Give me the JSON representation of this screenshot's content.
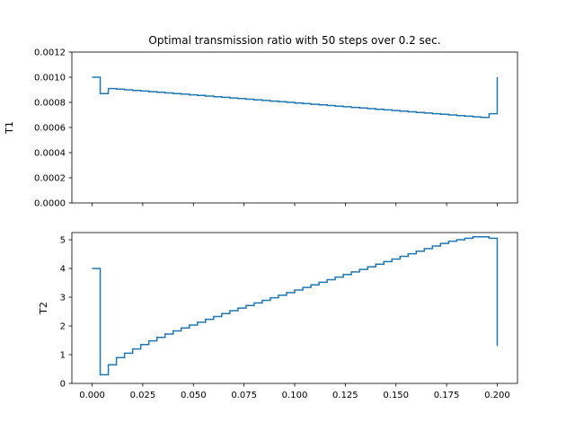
{
  "chart_data": [
    {
      "type": "line",
      "drawstyle": "steps-post",
      "title": "Optimal transmission ratio with 50 steps over 0.2 sec.",
      "xlabel": "",
      "ylabel": "T1",
      "xlim": [
        -0.01,
        0.21
      ],
      "ylim": [
        0,
        0.0012
      ],
      "yticks": [
        0,
        0.0002,
        0.0004,
        0.0006,
        0.0008,
        0.001,
        0.0012
      ],
      "ytick_labels": [
        "0.0000",
        "0.0002",
        "0.0004",
        "0.0006",
        "0.0008",
        "0.0010",
        "0.0012"
      ],
      "xticks": [
        0,
        0.025,
        0.05,
        0.075,
        0.1,
        0.125,
        0.15,
        0.175,
        0.2
      ],
      "xtick_labels": [
        "",
        "",
        "",
        "",
        "",
        "",
        "",
        "",
        ""
      ],
      "grid": false,
      "color": "#1f77b4",
      "x": [
        0,
        0.004,
        0.008,
        0.012,
        0.016,
        0.02,
        0.024,
        0.028,
        0.032,
        0.036,
        0.04,
        0.044,
        0.048,
        0.052,
        0.056,
        0.06,
        0.064,
        0.068,
        0.072,
        0.076,
        0.08,
        0.084,
        0.088,
        0.092,
        0.096,
        0.1,
        0.104,
        0.108,
        0.112,
        0.116,
        0.12,
        0.124,
        0.128,
        0.132,
        0.136,
        0.14,
        0.144,
        0.148,
        0.152,
        0.156,
        0.16,
        0.164,
        0.168,
        0.172,
        0.176,
        0.18,
        0.184,
        0.188,
        0.192,
        0.196,
        0.2
      ],
      "y": [
        0.001,
        0.00087,
        0.00091,
        0.000905,
        0.0009,
        0.000895,
        0.00089,
        0.000885,
        0.00088,
        0.000875,
        0.00087,
        0.000865,
        0.00086,
        0.000855,
        0.00085,
        0.000845,
        0.00084,
        0.000835,
        0.00083,
        0.000825,
        0.00082,
        0.000815,
        0.00081,
        0.000805,
        0.0008,
        0.000795,
        0.00079,
        0.000785,
        0.00078,
        0.000775,
        0.00077,
        0.000765,
        0.00076,
        0.000755,
        0.00075,
        0.000745,
        0.00074,
        0.000735,
        0.00073,
        0.000725,
        0.00072,
        0.000715,
        0.00071,
        0.000705,
        0.0007,
        0.000695,
        0.00069,
        0.000685,
        0.00068,
        0.00071,
        0.001
      ]
    },
    {
      "type": "line",
      "drawstyle": "steps-post",
      "title": "",
      "xlabel": "",
      "ylabel": "T2",
      "xlim": [
        -0.01,
        0.21
      ],
      "ylim": [
        0,
        5.25
      ],
      "yticks": [
        0,
        1,
        2,
        3,
        4,
        5
      ],
      "ytick_labels": [
        "0",
        "1",
        "2",
        "3",
        "4",
        "5"
      ],
      "xticks": [
        0,
        0.025,
        0.05,
        0.075,
        0.1,
        0.125,
        0.15,
        0.175,
        0.2
      ],
      "xtick_labels": [
        "0.000",
        "0.025",
        "0.050",
        "0.075",
        "0.100",
        "0.125",
        "0.150",
        "0.175",
        "0.200"
      ],
      "grid": false,
      "color": "#1f77b4",
      "x": [
        0,
        0.004,
        0.008,
        0.012,
        0.016,
        0.02,
        0.024,
        0.028,
        0.032,
        0.036,
        0.04,
        0.044,
        0.048,
        0.052,
        0.056,
        0.06,
        0.064,
        0.068,
        0.072,
        0.076,
        0.08,
        0.084,
        0.088,
        0.092,
        0.096,
        0.1,
        0.104,
        0.108,
        0.112,
        0.116,
        0.12,
        0.124,
        0.128,
        0.132,
        0.136,
        0.14,
        0.144,
        0.148,
        0.152,
        0.156,
        0.16,
        0.164,
        0.168,
        0.172,
        0.176,
        0.18,
        0.184,
        0.188,
        0.192,
        0.196,
        0.2
      ],
      "y": [
        4.0,
        0.3,
        0.65,
        0.9,
        1.05,
        1.2,
        1.35,
        1.48,
        1.6,
        1.72,
        1.83,
        1.93,
        2.03,
        2.13,
        2.23,
        2.33,
        2.43,
        2.53,
        2.62,
        2.71,
        2.8,
        2.89,
        2.98,
        3.07,
        3.16,
        3.25,
        3.34,
        3.43,
        3.52,
        3.61,
        3.7,
        3.79,
        3.88,
        3.97,
        4.06,
        4.15,
        4.24,
        4.33,
        4.42,
        4.51,
        4.6,
        4.69,
        4.78,
        4.87,
        4.95,
        5.0,
        5.05,
        5.1,
        5.1,
        5.05,
        1.3
      ]
    }
  ]
}
